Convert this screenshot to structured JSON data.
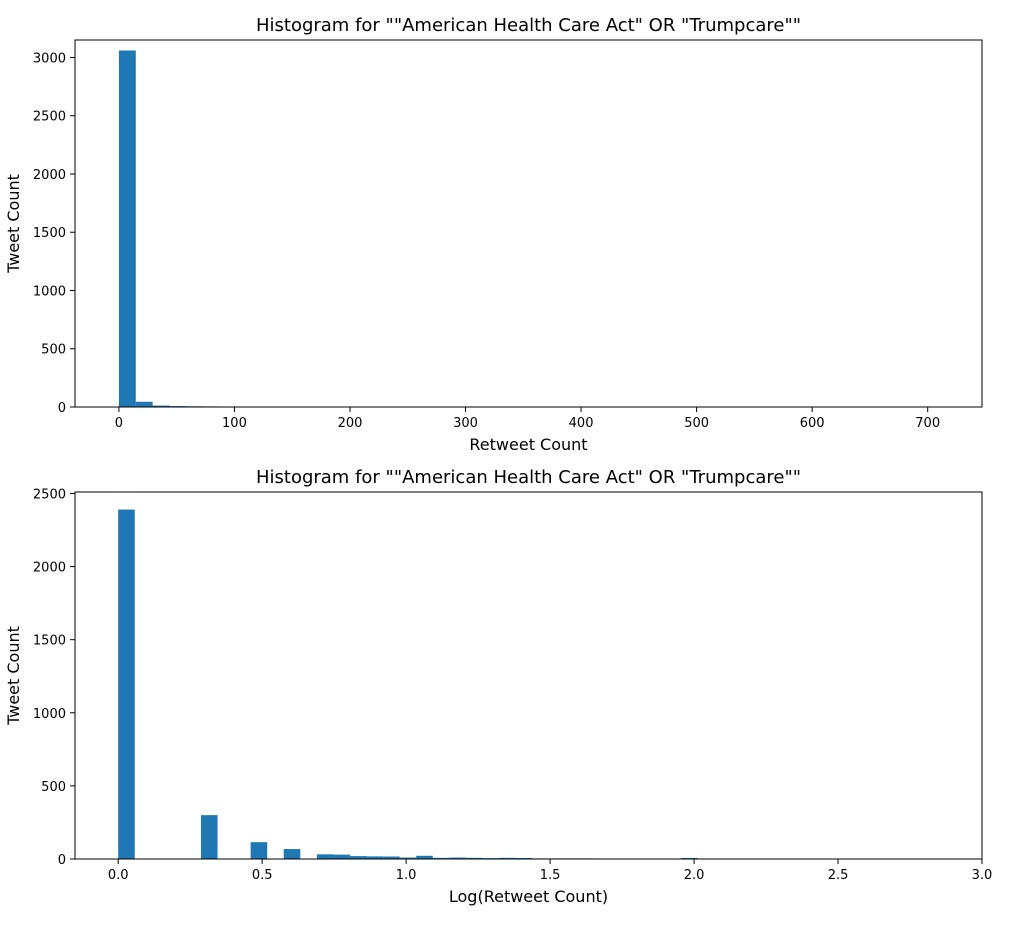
{
  "chart_data": [
    {
      "type": "bar",
      "title": "Histogram for \"\"American Health Care Act\" OR \"Trumpcare\"\"",
      "xlabel": "Retweet Count",
      "ylabel": "Tweet Count",
      "xlim": [
        -38,
        747
      ],
      "ylim": [
        0,
        3150
      ],
      "xticks": [
        0,
        100,
        200,
        300,
        400,
        500,
        600,
        700
      ],
      "yticks": [
        0,
        500,
        1000,
        1500,
        2000,
        2500,
        3000
      ],
      "bar_color": "#1f77b4",
      "bin_width": 14.6,
      "bins": [
        {
          "x": 0,
          "count": 3060
        },
        {
          "x": 14.6,
          "count": 45
        },
        {
          "x": 29.2,
          "count": 12
        },
        {
          "x": 43.8,
          "count": 8
        },
        {
          "x": 58.4,
          "count": 6
        },
        {
          "x": 73.0,
          "count": 5
        },
        {
          "x": 87.6,
          "count": 4
        },
        {
          "x": 102.2,
          "count": 1
        },
        {
          "x": 116.8,
          "count": 1
        },
        {
          "x": 131.4,
          "count": 1
        },
        {
          "x": 146.0,
          "count": 1
        },
        {
          "x": 160.6,
          "count": 1
        },
        {
          "x": 175.2,
          "count": 1
        },
        {
          "x": 189.8,
          "count": 1
        },
        {
          "x": 204.4,
          "count": 1
        },
        {
          "x": 219.0,
          "count": 1
        }
      ]
    },
    {
      "type": "bar",
      "title": "Histogram for \"\"American Health Care Act\" OR \"Trumpcare\"\"",
      "xlabel": "Log(Retweet Count)",
      "ylabel": "Tweet Count",
      "xlim": [
        -0.15,
        3.0
      ],
      "ylim": [
        0,
        2510
      ],
      "xticks": [
        0.0,
        0.5,
        1.0,
        1.5,
        2.0,
        2.5,
        3.0
      ],
      "xtick_labels": [
        "0.0",
        "0.5",
        "1.0",
        "1.5",
        "2.0",
        "2.5",
        "3.0"
      ],
      "yticks": [
        0,
        500,
        1000,
        1500,
        2000,
        2500
      ],
      "bar_color": "#1f77b4",
      "bin_width": 0.0575,
      "bins": [
        {
          "x": 0.0,
          "count": 2390
        },
        {
          "x": 0.2875,
          "count": 300
        },
        {
          "x": 0.46,
          "count": 115
        },
        {
          "x": 0.575,
          "count": 68
        },
        {
          "x": 0.69,
          "count": 32
        },
        {
          "x": 0.7475,
          "count": 30
        },
        {
          "x": 0.805,
          "count": 20
        },
        {
          "x": 0.8625,
          "count": 18
        },
        {
          "x": 0.92,
          "count": 17
        },
        {
          "x": 0.9775,
          "count": 10
        },
        {
          "x": 1.035,
          "count": 22
        },
        {
          "x": 1.0925,
          "count": 8
        },
        {
          "x": 1.15,
          "count": 10
        },
        {
          "x": 1.2075,
          "count": 8
        },
        {
          "x": 1.265,
          "count": 6
        },
        {
          "x": 1.3225,
          "count": 8
        },
        {
          "x": 1.38,
          "count": 7
        },
        {
          "x": 1.4375,
          "count": 4
        },
        {
          "x": 1.495,
          "count": 4
        },
        {
          "x": 1.5525,
          "count": 4
        },
        {
          "x": 1.61,
          "count": 4
        },
        {
          "x": 1.6675,
          "count": 3
        },
        {
          "x": 1.725,
          "count": 3
        },
        {
          "x": 1.7825,
          "count": 3
        },
        {
          "x": 1.84,
          "count": 3
        },
        {
          "x": 1.8975,
          "count": 3
        },
        {
          "x": 1.955,
          "count": 7
        },
        {
          "x": 2.0125,
          "count": 3
        },
        {
          "x": 2.07,
          "count": 3
        },
        {
          "x": 2.1275,
          "count": 2
        },
        {
          "x": 2.185,
          "count": 2
        },
        {
          "x": 2.3,
          "count": 3
        },
        {
          "x": 2.4725,
          "count": 2
        }
      ]
    }
  ]
}
